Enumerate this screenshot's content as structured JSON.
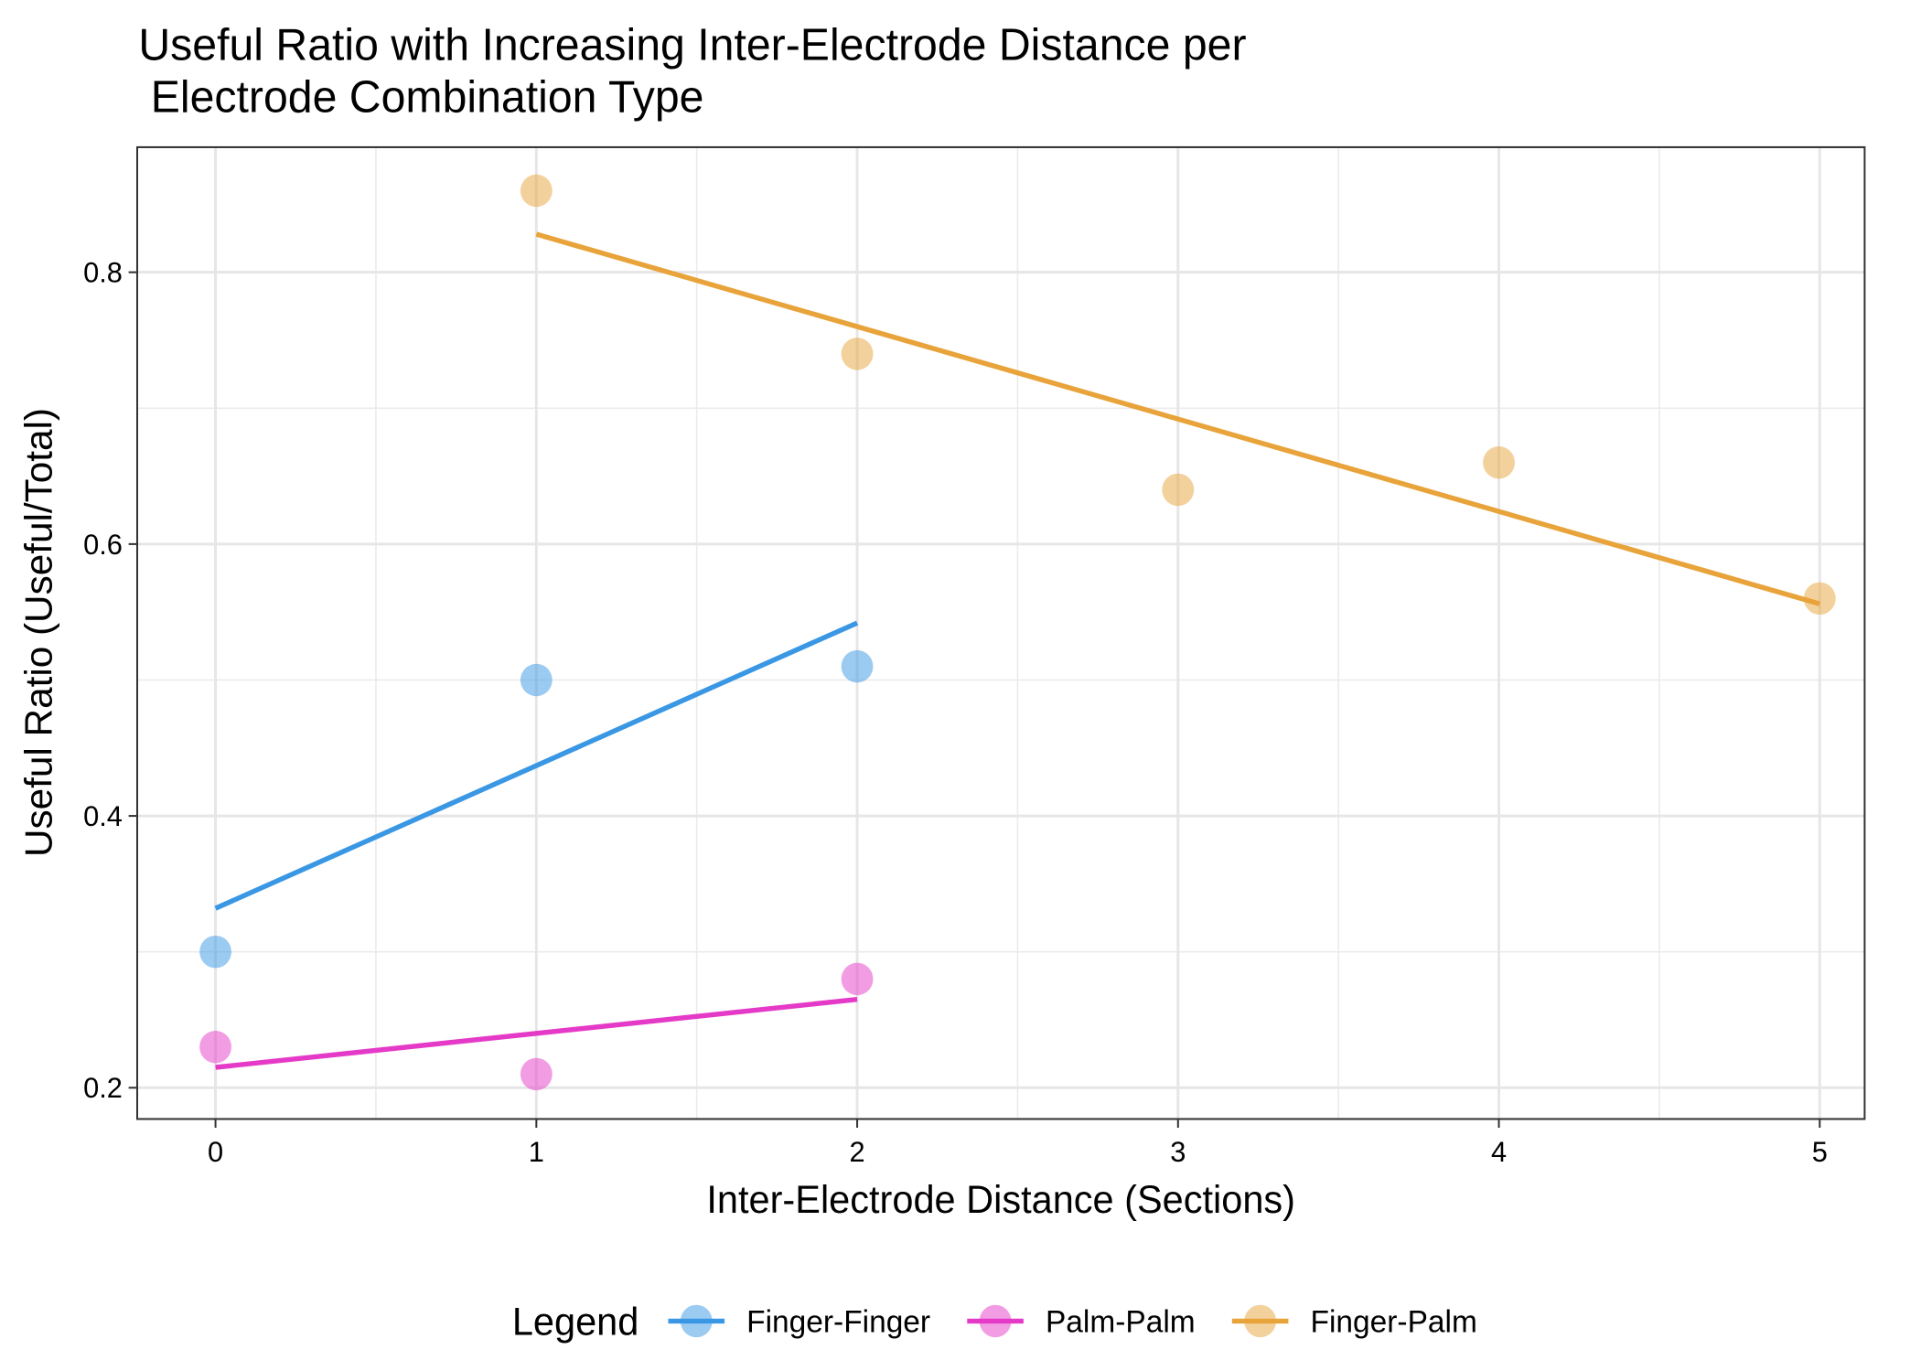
{
  "chart_data": {
    "type": "scatter",
    "title": [
      "Useful Ratio with Increasing Inter-Electrode Distance per",
      " Electrode Combination Type"
    ],
    "x_label": "Inter-Electrode Distance (Sections)",
    "y_label": "Useful Ratio (Useful/Total)",
    "legend_title": "Legend",
    "legend_position": "bottom",
    "grid": true,
    "xlim": [
      -0.244,
      5.14
    ],
    "ylim": [
      0.177,
      0.892
    ],
    "xticks": [
      0,
      1,
      2,
      3,
      4,
      5
    ],
    "yticks": [
      0.2,
      0.4,
      0.6,
      0.8
    ],
    "xminorticks": [
      0.5,
      1.5,
      2.5,
      3.5,
      4.5
    ],
    "yminorticks": [
      0.3,
      0.5,
      0.7
    ],
    "series": [
      {
        "name": "Finger-Finger",
        "color": "#3a97e4",
        "x": [
          0,
          1,
          2
        ],
        "values": [
          0.3,
          0.5,
          0.51
        ],
        "trend": {
          "x": [
            0,
            2
          ],
          "values": [
            0.332,
            0.542
          ]
        }
      },
      {
        "name": "Palm-Palm",
        "color": "#e53ac8",
        "x": [
          0,
          1,
          2
        ],
        "values": [
          0.23,
          0.21,
          0.28
        ],
        "trend": {
          "x": [
            0,
            2
          ],
          "values": [
            0.215,
            0.265
          ]
        }
      },
      {
        "name": "Finger-Palm",
        "color": "#e8a33a",
        "x": [
          1,
          2,
          3,
          4,
          5
        ],
        "values": [
          0.86,
          0.74,
          0.64,
          0.66,
          0.56
        ],
        "trend": {
          "x": [
            1,
            5
          ],
          "values": [
            0.828,
            0.556
          ]
        }
      }
    ]
  }
}
